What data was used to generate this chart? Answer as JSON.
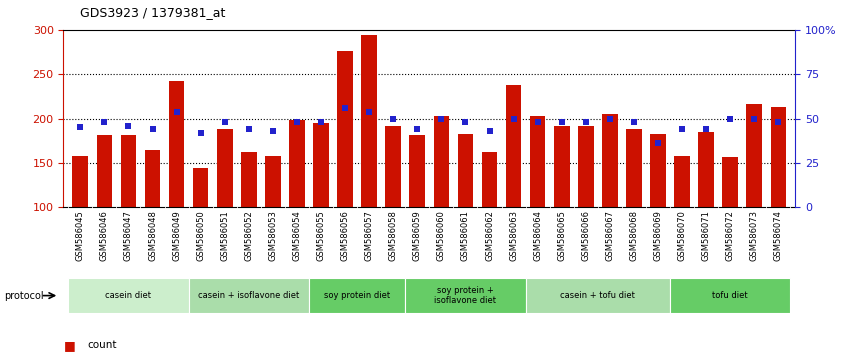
{
  "title": "GDS3923 / 1379381_at",
  "samples": [
    "GSM586045",
    "GSM586046",
    "GSM586047",
    "GSM586048",
    "GSM586049",
    "GSM586050",
    "GSM586051",
    "GSM586052",
    "GSM586053",
    "GSM586054",
    "GSM586055",
    "GSM586056",
    "GSM586057",
    "GSM586058",
    "GSM586059",
    "GSM586060",
    "GSM586061",
    "GSM586062",
    "GSM586063",
    "GSM586064",
    "GSM586065",
    "GSM586066",
    "GSM586067",
    "GSM586068",
    "GSM586069",
    "GSM586070",
    "GSM586071",
    "GSM586072",
    "GSM586073",
    "GSM586074"
  ],
  "counts": [
    158,
    181,
    181,
    165,
    243,
    144,
    188,
    162,
    158,
    198,
    195,
    276,
    295,
    192,
    182,
    203,
    183,
    162,
    238,
    203,
    192,
    192,
    205,
    188,
    183,
    158,
    185,
    157,
    216,
    213
  ],
  "percentile_ranks": [
    45,
    48,
    46,
    44,
    54,
    42,
    48,
    44,
    43,
    48,
    48,
    56,
    54,
    50,
    44,
    50,
    48,
    43,
    50,
    48,
    48,
    48,
    50,
    48,
    36,
    44,
    44,
    50,
    50,
    48
  ],
  "groups": [
    {
      "label": "casein diet",
      "start": 0,
      "end": 5,
      "color": "#b8e0b8"
    },
    {
      "label": "casein + isoflavone diet",
      "start": 5,
      "end": 10,
      "color": "#d0ecd0"
    },
    {
      "label": "soy protein diet",
      "start": 10,
      "end": 14,
      "color": "#77cc77"
    },
    {
      "label": "soy protein +\nisoflavone diet",
      "start": 14,
      "end": 19,
      "color": "#77cc77"
    },
    {
      "label": "casein + tofu diet",
      "start": 19,
      "end": 25,
      "color": "#aaddaa"
    },
    {
      "label": "tofu diet",
      "start": 25,
      "end": 30,
      "color": "#77cc77"
    }
  ],
  "group_colors": [
    "#cceecc",
    "#aaddaa",
    "#77dd77",
    "#77dd77",
    "#aaddaa",
    "#77dd77"
  ],
  "ylim_left": [
    100,
    300
  ],
  "ylim_right": [
    0,
    100
  ],
  "bar_color": "#cc1100",
  "dot_color": "#2222cc",
  "bg_color": "#ffffff",
  "tick_bg_color": "#cccccc",
  "right_yticks": [
    0,
    25,
    50,
    75,
    100
  ],
  "right_yticklabels": [
    "0",
    "25",
    "50",
    "75",
    "100%"
  ]
}
